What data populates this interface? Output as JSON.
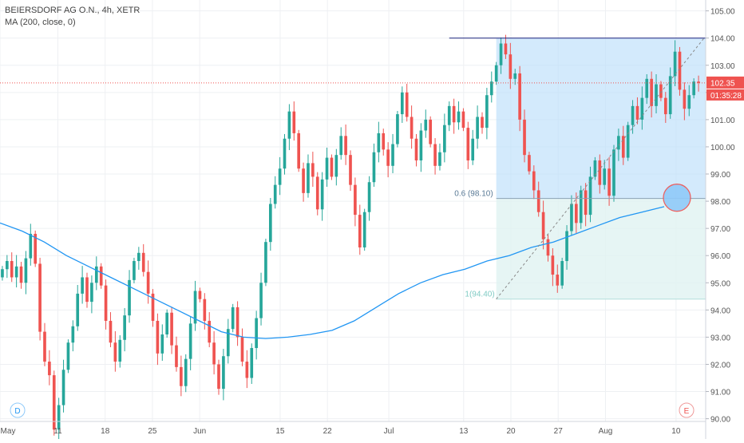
{
  "chart_data": {
    "type": "candlestick",
    "title": "BEIERSDORF AG O.N., 4h, XETR",
    "indicator_label": "MA (200, close, 0)",
    "ylim": [
      89.9,
      105.4
    ],
    "y_ticks": [
      90,
      91,
      92,
      93,
      94,
      95,
      96,
      97,
      98,
      99,
      100,
      101,
      102,
      103,
      104,
      105
    ],
    "y_tick_labels": [
      "90.00",
      "91.00",
      "92.00",
      "93.00",
      "94.00",
      "95.00",
      "96.00",
      "97.00",
      "98.00",
      "99.00",
      "100.00",
      "101.00",
      "102.00",
      "103.00",
      "104.00",
      "105.00"
    ],
    "x_ticks": [
      {
        "label": "May",
        "pos": 0.0
      },
      {
        "label": "11",
        "pos": 0.082
      },
      {
        "label": "18",
        "pos": 0.149
      },
      {
        "label": "25",
        "pos": 0.216
      },
      {
        "label": "Jun",
        "pos": 0.283
      },
      {
        "label": "15",
        "pos": 0.397
      },
      {
        "label": "22",
        "pos": 0.464
      },
      {
        "label": "Jul",
        "pos": 0.551
      },
      {
        "label": "13",
        "pos": 0.657
      },
      {
        "label": "20",
        "pos": 0.724
      },
      {
        "label": "27",
        "pos": 0.791
      },
      {
        "label": "Aug",
        "pos": 0.858
      },
      {
        "label": "10",
        "pos": 0.958
      }
    ],
    "closes": [
      95.5,
      95.8,
      95.2,
      95.6,
      95.0,
      95.9,
      96.8,
      95.7,
      93.2,
      92.1,
      91.6,
      89.6,
      90.5,
      91.8,
      92.8,
      93.4,
      94.6,
      95.2,
      94.3,
      95.0,
      95.6,
      94.9,
      93.6,
      92.8,
      92.1,
      92.9,
      93.8,
      95.1,
      95.8,
      96.1,
      95.4,
      94.6,
      93.6,
      92.4,
      93.1,
      93.9,
      92.7,
      91.9,
      91.2,
      92.2,
      93.5,
      94.7,
      94.4,
      93.6,
      92.8,
      92.0,
      91.1,
      92.3,
      93.3,
      94.1,
      93.0,
      92.1,
      91.5,
      92.6,
      93.7,
      95.0,
      96.5,
      97.9,
      98.6,
      99.2,
      100.3,
      101.3,
      100.5,
      99.2,
      98.3,
      99.4,
      98.9,
      97.7,
      98.8,
      99.6,
      98.9,
      99.7,
      100.4,
      99.7,
      98.6,
      97.5,
      96.3,
      97.6,
      98.7,
      99.8,
      100.5,
      99.9,
      99.3,
      100.1,
      101.2,
      102.0,
      101.1,
      100.3,
      99.5,
      100.6,
      101.0,
      100.1,
      99.3,
      99.8,
      100.8,
      101.5,
      100.9,
      101.3,
      100.7,
      99.5,
      100.3,
      101.1,
      100.7,
      101.9,
      102.4,
      103.0,
      103.8,
      103.4,
      102.5,
      102.7,
      101.0,
      99.7,
      99.1,
      98.4,
      97.6,
      96.6,
      96.0,
      95.3,
      94.9,
      95.8,
      96.9,
      97.9,
      97.2,
      98.4,
      97.5,
      98.9,
      99.5,
      98.6,
      99.2,
      98.2,
      99.9,
      100.4,
      99.6,
      100.8,
      101.5,
      101.0,
      101.8,
      102.5,
      101.5,
      102.3,
      101.8,
      101.2,
      102.6,
      103.5,
      102.1,
      101.4,
      101.9,
      102.4,
      102.35
    ],
    "ma_levels": [
      97.2,
      96.9,
      96.5,
      96.0,
      95.6,
      95.2,
      94.8,
      94.4,
      94.0,
      93.6,
      93.2,
      93.0,
      92.95,
      93.0,
      93.1,
      93.25,
      93.6,
      94.1,
      94.6,
      95.0,
      95.3,
      95.5,
      95.8,
      96.0,
      96.3,
      96.5,
      96.8,
      97.1,
      97.4,
      97.6,
      97.8
    ],
    "hline_price": 102.35,
    "range_high": 104.0,
    "range_low": 94.4,
    "fib_label": "0.6 (98.10)",
    "fib_level": 98.1,
    "fib_base_label": "1(94.40)",
    "price_badge": "102.35",
    "time_badge": "01:35:28",
    "dividend_marker": "D",
    "earnings_marker": "E",
    "colors": {
      "up": "#26a69a",
      "down": "#ef5350",
      "ma": "#2196f3",
      "range_fill": "#bbdefb",
      "range_lower_fill": "#e0f2f1",
      "high_line": "#1a237e",
      "circle_fill": "#90caf9",
      "circle_stroke": "#ef5350",
      "grid": "#eef0f3"
    }
  }
}
